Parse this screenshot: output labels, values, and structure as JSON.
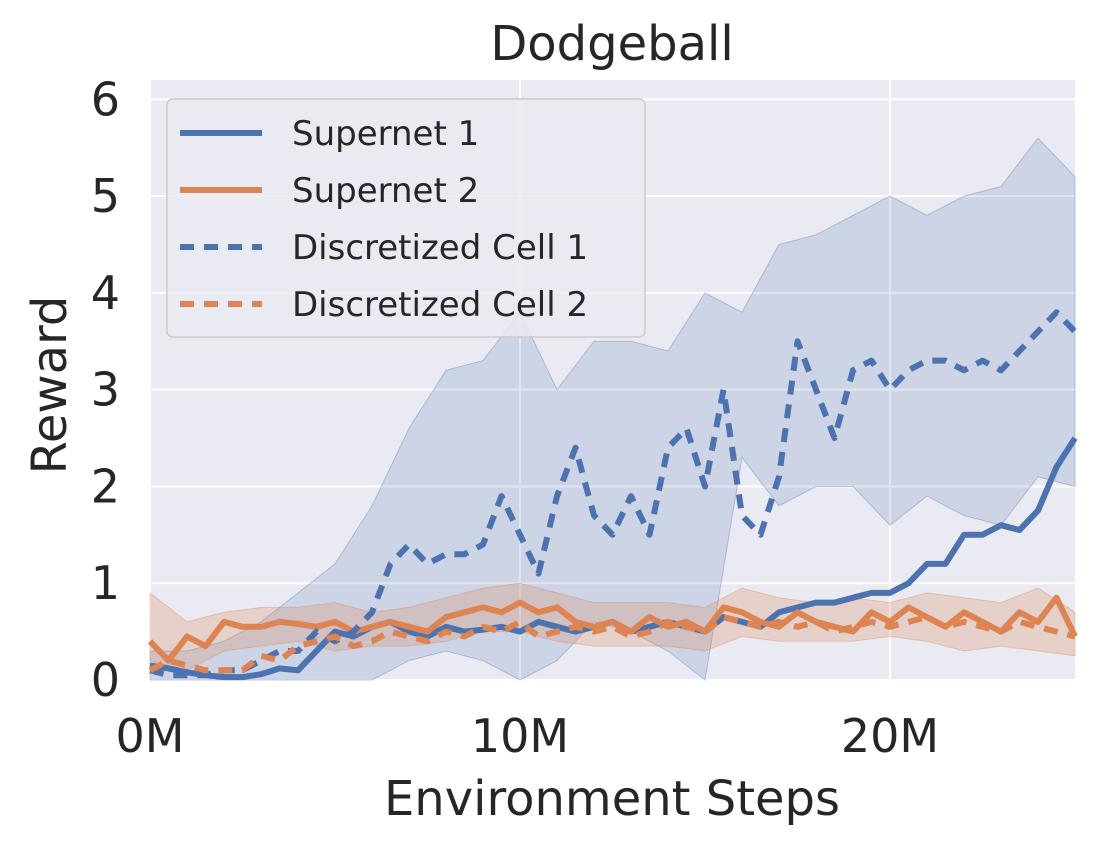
{
  "chart_data": {
    "type": "line",
    "title": "Dodgeball",
    "xlabel": "Environment Steps",
    "ylabel": "Reward",
    "xlim": [
      0,
      25
    ],
    "ylim": [
      0,
      6.2
    ],
    "x_unit": "M steps",
    "xticks": [
      0,
      10,
      20
    ],
    "xtick_labels": [
      "0M",
      "10M",
      "20M"
    ],
    "yticks": [
      0,
      1,
      2,
      3,
      4,
      5,
      6
    ],
    "ytick_labels": [
      "0",
      "1",
      "2",
      "3",
      "4",
      "5",
      "6"
    ],
    "grid": true,
    "legend_position": "top-left",
    "colors": {
      "blue": "#4c72b0",
      "orange": "#dd8452",
      "background": "#eaeaf2",
      "grid": "#ffffff"
    },
    "series": [
      {
        "name": "Supernet 1",
        "style": "solid",
        "color": "#4c72b0",
        "x": [
          0,
          0.5,
          1,
          1.5,
          2,
          2.5,
          3,
          3.5,
          4,
          4.5,
          5,
          5.5,
          6,
          6.5,
          7,
          7.5,
          8,
          8.5,
          9,
          9.5,
          10,
          10.5,
          11,
          11.5,
          12,
          12.5,
          13,
          13.5,
          14,
          14.5,
          15,
          15.5,
          16,
          16.5,
          17,
          17.5,
          18,
          18.5,
          19,
          19.5,
          20,
          20.5,
          21,
          21.5,
          22,
          22.5,
          23,
          23.5,
          24,
          24.5,
          25
        ],
        "y": [
          0.15,
          0.12,
          0.08,
          0.05,
          0.03,
          0.03,
          0.06,
          0.12,
          0.1,
          0.3,
          0.5,
          0.45,
          0.55,
          0.6,
          0.5,
          0.45,
          0.55,
          0.5,
          0.52,
          0.55,
          0.5,
          0.6,
          0.55,
          0.5,
          0.55,
          0.6,
          0.5,
          0.55,
          0.6,
          0.55,
          0.5,
          0.65,
          0.6,
          0.55,
          0.7,
          0.75,
          0.8,
          0.8,
          0.85,
          0.9,
          0.9,
          1.0,
          1.2,
          1.2,
          1.5,
          1.5,
          1.6,
          1.55,
          1.75,
          2.2,
          2.5
        ]
      },
      {
        "name": "Supernet 2",
        "style": "solid",
        "color": "#dd8452",
        "x": [
          0,
          0.5,
          1,
          1.5,
          2,
          2.5,
          3,
          3.5,
          4,
          4.5,
          5,
          5.5,
          6,
          6.5,
          7,
          7.5,
          8,
          8.5,
          9,
          9.5,
          10,
          10.5,
          11,
          11.5,
          12,
          12.5,
          13,
          13.5,
          14,
          14.5,
          15,
          15.5,
          16,
          16.5,
          17,
          17.5,
          18,
          18.5,
          19,
          19.5,
          20,
          20.5,
          21,
          21.5,
          22,
          22.5,
          23,
          23.5,
          24,
          24.5,
          25
        ],
        "y": [
          0.4,
          0.2,
          0.45,
          0.35,
          0.6,
          0.55,
          0.55,
          0.6,
          0.58,
          0.55,
          0.6,
          0.5,
          0.55,
          0.6,
          0.55,
          0.5,
          0.65,
          0.7,
          0.75,
          0.7,
          0.8,
          0.7,
          0.75,
          0.6,
          0.55,
          0.6,
          0.5,
          0.65,
          0.55,
          0.6,
          0.5,
          0.75,
          0.7,
          0.6,
          0.55,
          0.7,
          0.6,
          0.55,
          0.5,
          0.7,
          0.6,
          0.75,
          0.65,
          0.55,
          0.7,
          0.6,
          0.5,
          0.7,
          0.6,
          0.85,
          0.45
        ]
      },
      {
        "name": "Discretized Cell 1",
        "style": "dashed",
        "color": "#4c72b0",
        "x": [
          0,
          0.5,
          1,
          1.5,
          2,
          2.5,
          3,
          3.5,
          4,
          4.5,
          5,
          5.5,
          6,
          6.5,
          7,
          7.5,
          8,
          8.5,
          9,
          9.5,
          10,
          10.5,
          11,
          11.5,
          12,
          12.5,
          13,
          13.5,
          14,
          14.5,
          15,
          15.5,
          16,
          16.5,
          17,
          17.5,
          18,
          18.5,
          19,
          19.5,
          20,
          20.5,
          21,
          21.5,
          22,
          22.5,
          23,
          23.5,
          24,
          24.5,
          25
        ],
        "y": [
          0.1,
          0.05,
          0.05,
          0.05,
          0.1,
          0.1,
          0.2,
          0.3,
          0.3,
          0.5,
          0.4,
          0.5,
          0.7,
          1.2,
          1.4,
          1.2,
          1.3,
          1.3,
          1.4,
          1.9,
          1.5,
          1.1,
          1.9,
          2.4,
          1.7,
          1.5,
          1.9,
          1.5,
          2.4,
          2.6,
          2.0,
          3.0,
          1.7,
          1.5,
          2.1,
          3.5,
          3.0,
          2.5,
          3.2,
          3.3,
          3.0,
          3.2,
          3.3,
          3.3,
          3.2,
          3.3,
          3.2,
          3.4,
          3.6,
          3.8,
          3.6
        ]
      },
      {
        "name": "Discretized Cell 2",
        "style": "dashed",
        "color": "#dd8452",
        "x": [
          0,
          0.5,
          1,
          1.5,
          2,
          2.5,
          3,
          3.5,
          4,
          4.5,
          5,
          5.5,
          6,
          6.5,
          7,
          7.5,
          8,
          8.5,
          9,
          9.5,
          10,
          10.5,
          11,
          11.5,
          12,
          12.5,
          13,
          13.5,
          14,
          14.5,
          15,
          15.5,
          16,
          16.5,
          17,
          17.5,
          18,
          18.5,
          19,
          19.5,
          20,
          20.5,
          21,
          21.5,
          22,
          22.5,
          23,
          23.5,
          24,
          24.5,
          25
        ],
        "y": [
          0.1,
          0.2,
          0.15,
          0.1,
          0.1,
          0.1,
          0.25,
          0.2,
          0.35,
          0.4,
          0.45,
          0.35,
          0.4,
          0.5,
          0.45,
          0.4,
          0.5,
          0.45,
          0.55,
          0.5,
          0.6,
          0.45,
          0.5,
          0.55,
          0.5,
          0.55,
          0.45,
          0.5,
          0.6,
          0.55,
          0.5,
          0.65,
          0.6,
          0.55,
          0.6,
          0.55,
          0.6,
          0.5,
          0.55,
          0.6,
          0.55,
          0.6,
          0.65,
          0.55,
          0.6,
          0.55,
          0.5,
          0.6,
          0.55,
          0.5,
          0.45
        ]
      }
    ],
    "bands": [
      {
        "series": "Discretized Cell 1",
        "color": "#4c72b0",
        "opacity": 0.18,
        "x": [
          0,
          1,
          2,
          3,
          4,
          5,
          6,
          7,
          8,
          9,
          10,
          11,
          12,
          13,
          14,
          15,
          16,
          17,
          18,
          19,
          20,
          21,
          22,
          23,
          24,
          25
        ],
        "lower": [
          0,
          0,
          0,
          0,
          0,
          0,
          0,
          0.2,
          0.3,
          0.2,
          0,
          0.2,
          0.6,
          0.5,
          0.3,
          0,
          2.3,
          1.8,
          2.0,
          2.0,
          1.6,
          1.9,
          1.7,
          1.6,
          2.1,
          2.0
        ],
        "upper": [
          0.3,
          0.3,
          0.4,
          0.6,
          0.9,
          1.2,
          1.8,
          2.6,
          3.2,
          3.3,
          3.8,
          3.0,
          3.5,
          3.5,
          3.4,
          4.0,
          3.8,
          4.5,
          4.6,
          4.8,
          5.0,
          4.8,
          5.0,
          5.1,
          5.6,
          5.2
        ]
      },
      {
        "series": "Supernet 2",
        "color": "#dd8452",
        "opacity": 0.25,
        "x": [
          0,
          1,
          2,
          3,
          4,
          5,
          6,
          7,
          8,
          9,
          10,
          11,
          12,
          13,
          14,
          15,
          16,
          17,
          18,
          19,
          20,
          21,
          22,
          23,
          24,
          25
        ],
        "lower": [
          0.2,
          0.1,
          0.3,
          0.35,
          0.4,
          0.3,
          0.35,
          0.35,
          0.4,
          0.5,
          0.5,
          0.4,
          0.35,
          0.35,
          0.35,
          0.3,
          0.45,
          0.4,
          0.4,
          0.4,
          0.45,
          0.4,
          0.3,
          0.35,
          0.3,
          0.25
        ],
        "upper": [
          0.9,
          0.6,
          0.7,
          0.75,
          0.75,
          0.8,
          0.7,
          0.75,
          0.85,
          0.95,
          1.0,
          0.9,
          0.8,
          0.8,
          0.8,
          0.75,
          0.95,
          0.85,
          0.8,
          0.85,
          0.8,
          0.9,
          0.85,
          0.8,
          0.95,
          0.7
        ]
      }
    ]
  }
}
